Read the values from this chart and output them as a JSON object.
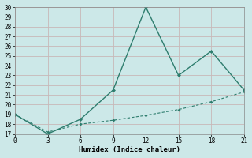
{
  "xlabel": "Humidex (Indice chaleur)",
  "x": [
    0,
    3,
    6,
    9,
    12,
    15,
    18,
    21
  ],
  "line1_y": [
    19,
    17,
    18.5,
    21.5,
    30,
    23,
    25.5,
    21.5
  ],
  "line2_y": [
    19,
    17.2,
    18.0,
    18.4,
    18.9,
    19.5,
    20.3,
    21.3
  ],
  "line_color": "#2e7d6e",
  "bg_color": "#cce8e8",
  "grid_color": "#c8b8b8",
  "ylim": [
    17,
    30
  ],
  "xlim": [
    0,
    21
  ],
  "yticks": [
    17,
    18,
    19,
    20,
    21,
    22,
    23,
    24,
    25,
    26,
    27,
    28,
    29,
    30
  ],
  "xticks": [
    0,
    3,
    6,
    9,
    12,
    15,
    18,
    21
  ]
}
